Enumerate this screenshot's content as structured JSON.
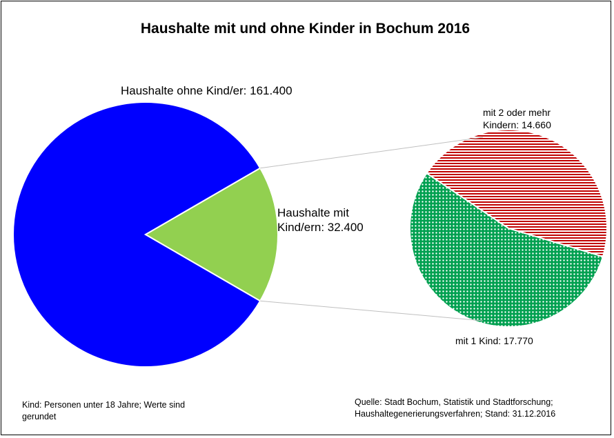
{
  "chart_data": [
    {
      "type": "pie",
      "title": "Haushalte mit und ohne Kinder in Bochum 2016",
      "slices": [
        {
          "label": "Haushalte ohne Kind/er: 161.400",
          "value": 161400,
          "color": "#0000ff"
        },
        {
          "label": "Haushalte mit Kind/ern: 32.400",
          "value": 32400,
          "color": "#92d050"
        }
      ]
    },
    {
      "type": "pie",
      "slices": [
        {
          "label": "mit 2 oder mehr Kindern: 14.660",
          "value": 14660,
          "color": "#c00000",
          "pattern": "horizontal-stripes"
        },
        {
          "label": "mit 1 Kind: 17.770",
          "value": 17770,
          "color": "#00a050",
          "pattern": "dots"
        }
      ]
    }
  ],
  "labels": {
    "title": "Haushalte mit und ohne Kinder in Bochum 2016",
    "ohne_kinder": "Haushalte ohne Kind/er: 161.400",
    "mit_kindern_line1": "Haushalte mit",
    "mit_kindern_line2": "Kind/ern: 32.400",
    "mehr_kinder_line1": "mit 2 oder mehr",
    "mehr_kinder_line2": "Kindern: 14.660",
    "ein_kind": "mit 1 Kind: 17.770"
  },
  "footnote_left": {
    "line1": "Kind: Personen unter 18 Jahre; Werte sind",
    "line2": "gerundet"
  },
  "footnote_right": {
    "line1": "Quelle: Stadt Bochum, Statistik und Stadtforschung;",
    "line2": "Haushaltegenerierungsverfahren;  Stand: 31.12.2016"
  }
}
